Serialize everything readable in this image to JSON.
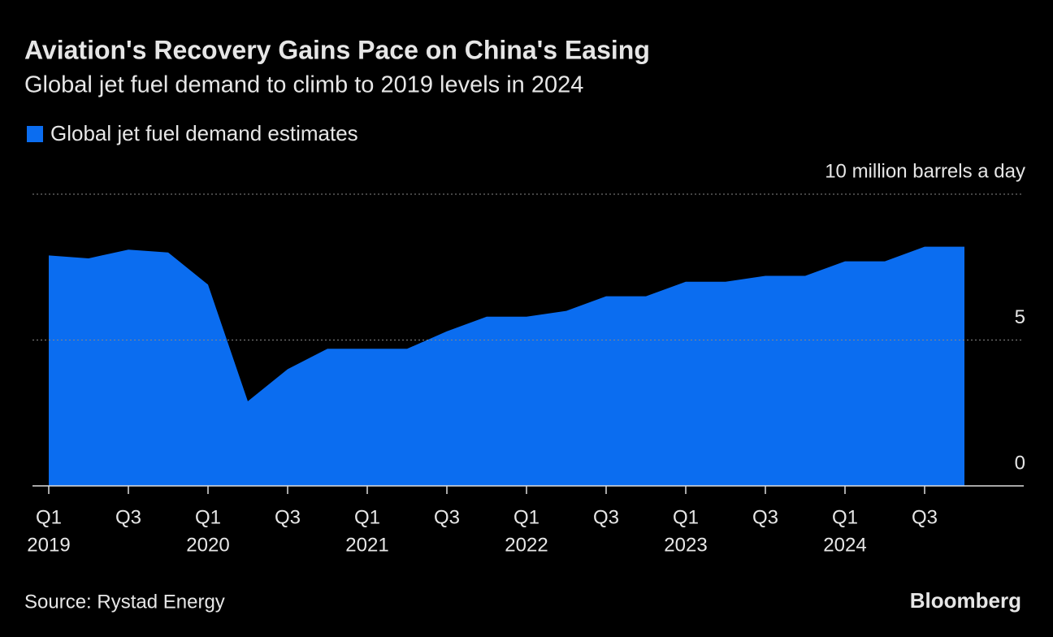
{
  "chart_data": {
    "type": "area",
    "title": "Aviation's Recovery Gains Pace on China's Easing",
    "subtitle": "Global jet fuel demand to climb to 2019 levels in 2024",
    "source": "Source: Rystad Energy",
    "brand": "Bloomberg",
    "categories": [
      "Q1",
      null,
      "Q3",
      null,
      "Q1",
      null,
      "Q3",
      null,
      "Q1",
      null,
      "Q3",
      null,
      "Q1",
      null,
      "Q3",
      null,
      "Q1",
      null,
      "Q3",
      null,
      "Q1",
      null,
      "Q3",
      null
    ],
    "category_years": [
      "2019",
      null,
      null,
      null,
      "2020",
      null,
      null,
      null,
      "2021",
      null,
      null,
      null,
      "2022",
      null,
      null,
      null,
      "2023",
      null,
      null,
      null,
      "2024",
      null,
      null,
      null
    ],
    "series": [
      {
        "name": "Global jet fuel demand estimates",
        "color": "#0b6df0",
        "values": [
          7.9,
          7.8,
          8.1,
          8.0,
          6.9,
          2.9,
          4.0,
          4.7,
          4.7,
          4.7,
          5.3,
          5.8,
          5.8,
          6.0,
          6.5,
          6.5,
          7.0,
          7.0,
          7.2,
          7.2,
          7.7,
          7.7,
          8.2,
          8.2
        ]
      }
    ],
    "ylim": [
      0,
      10
    ],
    "yticks": [
      0,
      5,
      {
        "value": 10,
        "label": "10 million barrels a day"
      }
    ],
    "grid": true
  }
}
